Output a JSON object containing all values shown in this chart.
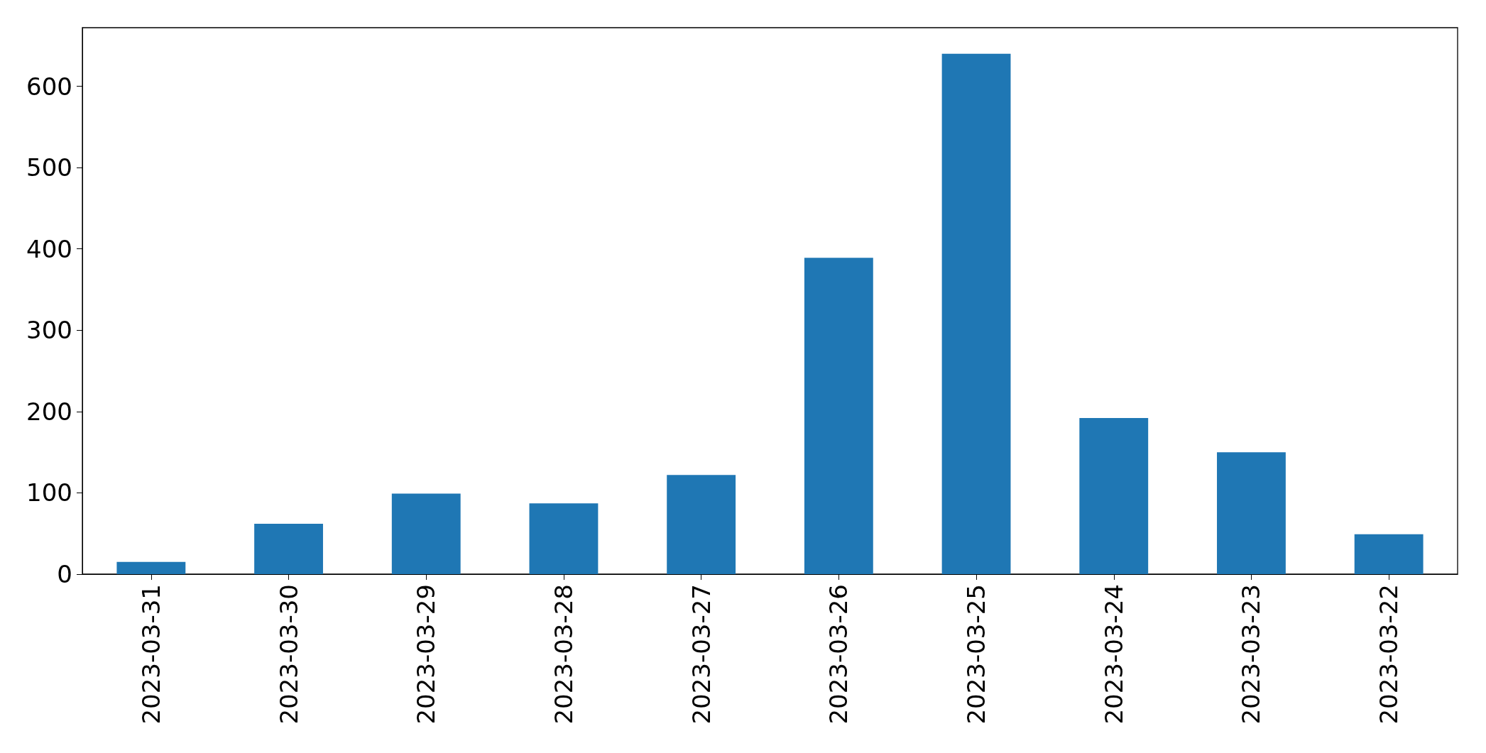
{
  "chart_data": {
    "type": "bar",
    "categories": [
      "2023-03-31",
      "2023-03-30",
      "2023-03-29",
      "2023-03-28",
      "2023-03-27",
      "2023-03-26",
      "2023-03-25",
      "2023-03-24",
      "2023-03-23",
      "2023-03-22"
    ],
    "values": [
      15,
      62,
      99,
      87,
      122,
      389,
      640,
      192,
      150,
      49
    ],
    "color": "#1f77b4",
    "ylim": [
      0,
      672
    ],
    "yticks": [
      0,
      100,
      200,
      300,
      400,
      500,
      600
    ]
  }
}
